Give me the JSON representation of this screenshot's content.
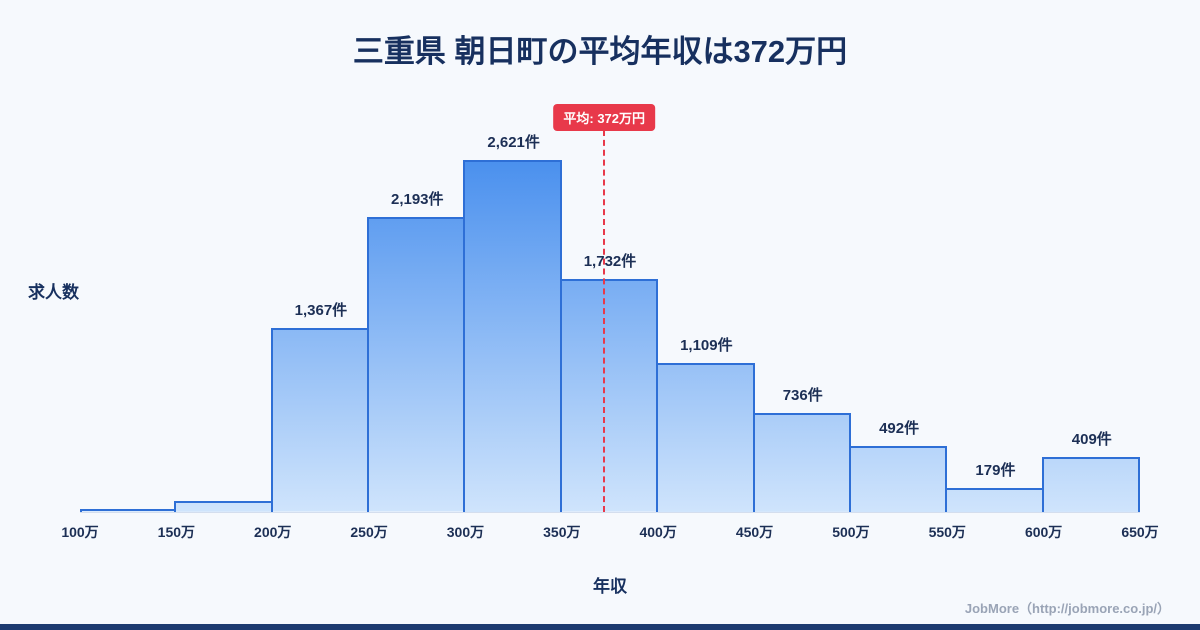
{
  "title": "三重県 朝日町の平均年収は372万円",
  "footer": {
    "credit": "JobMore（http://jobmore.co.jp/）"
  },
  "chart_data": {
    "type": "bar",
    "histogram": true,
    "title": "三重県 朝日町の平均年収は372万円",
    "xlabel": "年収",
    "ylabel": "求人数",
    "bin_edges_labels": [
      "100万",
      "150万",
      "200万",
      "250万",
      "300万",
      "350万",
      "400万",
      "450万",
      "500万",
      "550万",
      "600万",
      "650万"
    ],
    "bin_edges_values": [
      100,
      150,
      200,
      250,
      300,
      350,
      400,
      450,
      500,
      550,
      600,
      650
    ],
    "values": [
      20,
      80,
      1367,
      2193,
      2621,
      1732,
      1109,
      736,
      492,
      179,
      409
    ],
    "data_labels": [
      "",
      "",
      "1,367件",
      "2,193件",
      "2,621件",
      "1,732件",
      "1,109件",
      "736件",
      "492件",
      "179件",
      "409件"
    ],
    "ylim": [
      0,
      2621
    ],
    "average": {
      "value": 372,
      "label": "平均: 372万円"
    },
    "legend": "none",
    "grid": "off",
    "colors": {
      "background": "#f6f9fd",
      "bar_top": "#4a90ee",
      "bar_bottom": "#cfe4fc",
      "bar_border": "#2e6fd6",
      "average_line": "#e8394a",
      "title_text": "#17305f",
      "footer_text": "#9aa4b6",
      "bottom_bar": "#1d3b70"
    }
  }
}
